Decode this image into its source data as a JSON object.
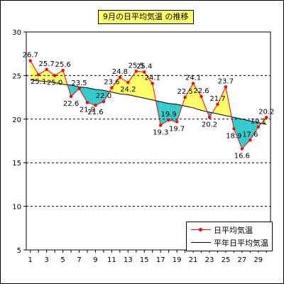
{
  "title": "9月の日平均気温 の推移",
  "colors": {
    "daily_line": "#ff0000",
    "daily_marker": "#ff0000",
    "normal_line": "#000000",
    "above_fill": "#ffff66",
    "below_fill": "#33cccc",
    "grid": "#000000"
  },
  "legend": {
    "daily_label": "日平均気温",
    "normal_label": "平年日平均気温"
  },
  "chart_data": {
    "type": "line",
    "title": "9月の日平均気温 の推移",
    "xlabel": "",
    "ylabel": "",
    "x": [
      1,
      2,
      3,
      4,
      5,
      6,
      7,
      8,
      9,
      10,
      11,
      12,
      13,
      14,
      15,
      16,
      17,
      18,
      19,
      20,
      21,
      22,
      23,
      24,
      25,
      26,
      27,
      28,
      29,
      30
    ],
    "xticks": [
      1,
      3,
      5,
      7,
      9,
      11,
      13,
      15,
      17,
      19,
      21,
      23,
      25,
      27,
      29
    ],
    "ylim": [
      5,
      30
    ],
    "yticks": [
      5,
      10,
      15,
      20,
      25,
      30
    ],
    "grid": "horizontal dashed",
    "legend_position": "bottom-right",
    "series": [
      {
        "name": "日平均気温",
        "values": [
          26.7,
          25.1,
          25.7,
          25.0,
          25.6,
          22.6,
          23.5,
          21.9,
          21.6,
          22.0,
          23.6,
          24.8,
          24.2,
          25.5,
          25.4,
          24.1,
          19.3,
          19.9,
          19.7,
          22.5,
          24.1,
          22.6,
          20.2,
          21.7,
          23.7,
          18.9,
          16.6,
          17.6,
          19.1,
          20.2
        ]
      },
      {
        "name": "平年日平均気温",
        "values": [
          24.5,
          24.4,
          24.3,
          24.2,
          24.0,
          23.9,
          23.7,
          23.6,
          23.4,
          23.3,
          23.1,
          22.9,
          22.8,
          22.6,
          22.4,
          22.2,
          22.0,
          21.8,
          21.7,
          21.5,
          21.3,
          21.0,
          20.8,
          20.6,
          20.4,
          20.2,
          20.0,
          19.8,
          19.6,
          19.4
        ]
      }
    ],
    "data_labels": [
      "26.7",
      "25.1",
      "25.7",
      "25.0",
      "25.6",
      "22.6",
      "23.5",
      "21.9",
      "21.6",
      "22.0",
      "23.6",
      "24.8",
      "24.2",
      "25.5",
      "25.4",
      "24.1",
      "19.3",
      "19.9",
      "19.7",
      "22.5",
      "24.1",
      "22.6",
      "20.2",
      "21.7",
      "23.7",
      "18.9",
      "16.6",
      "17.6",
      "19.1",
      "20.2"
    ]
  }
}
